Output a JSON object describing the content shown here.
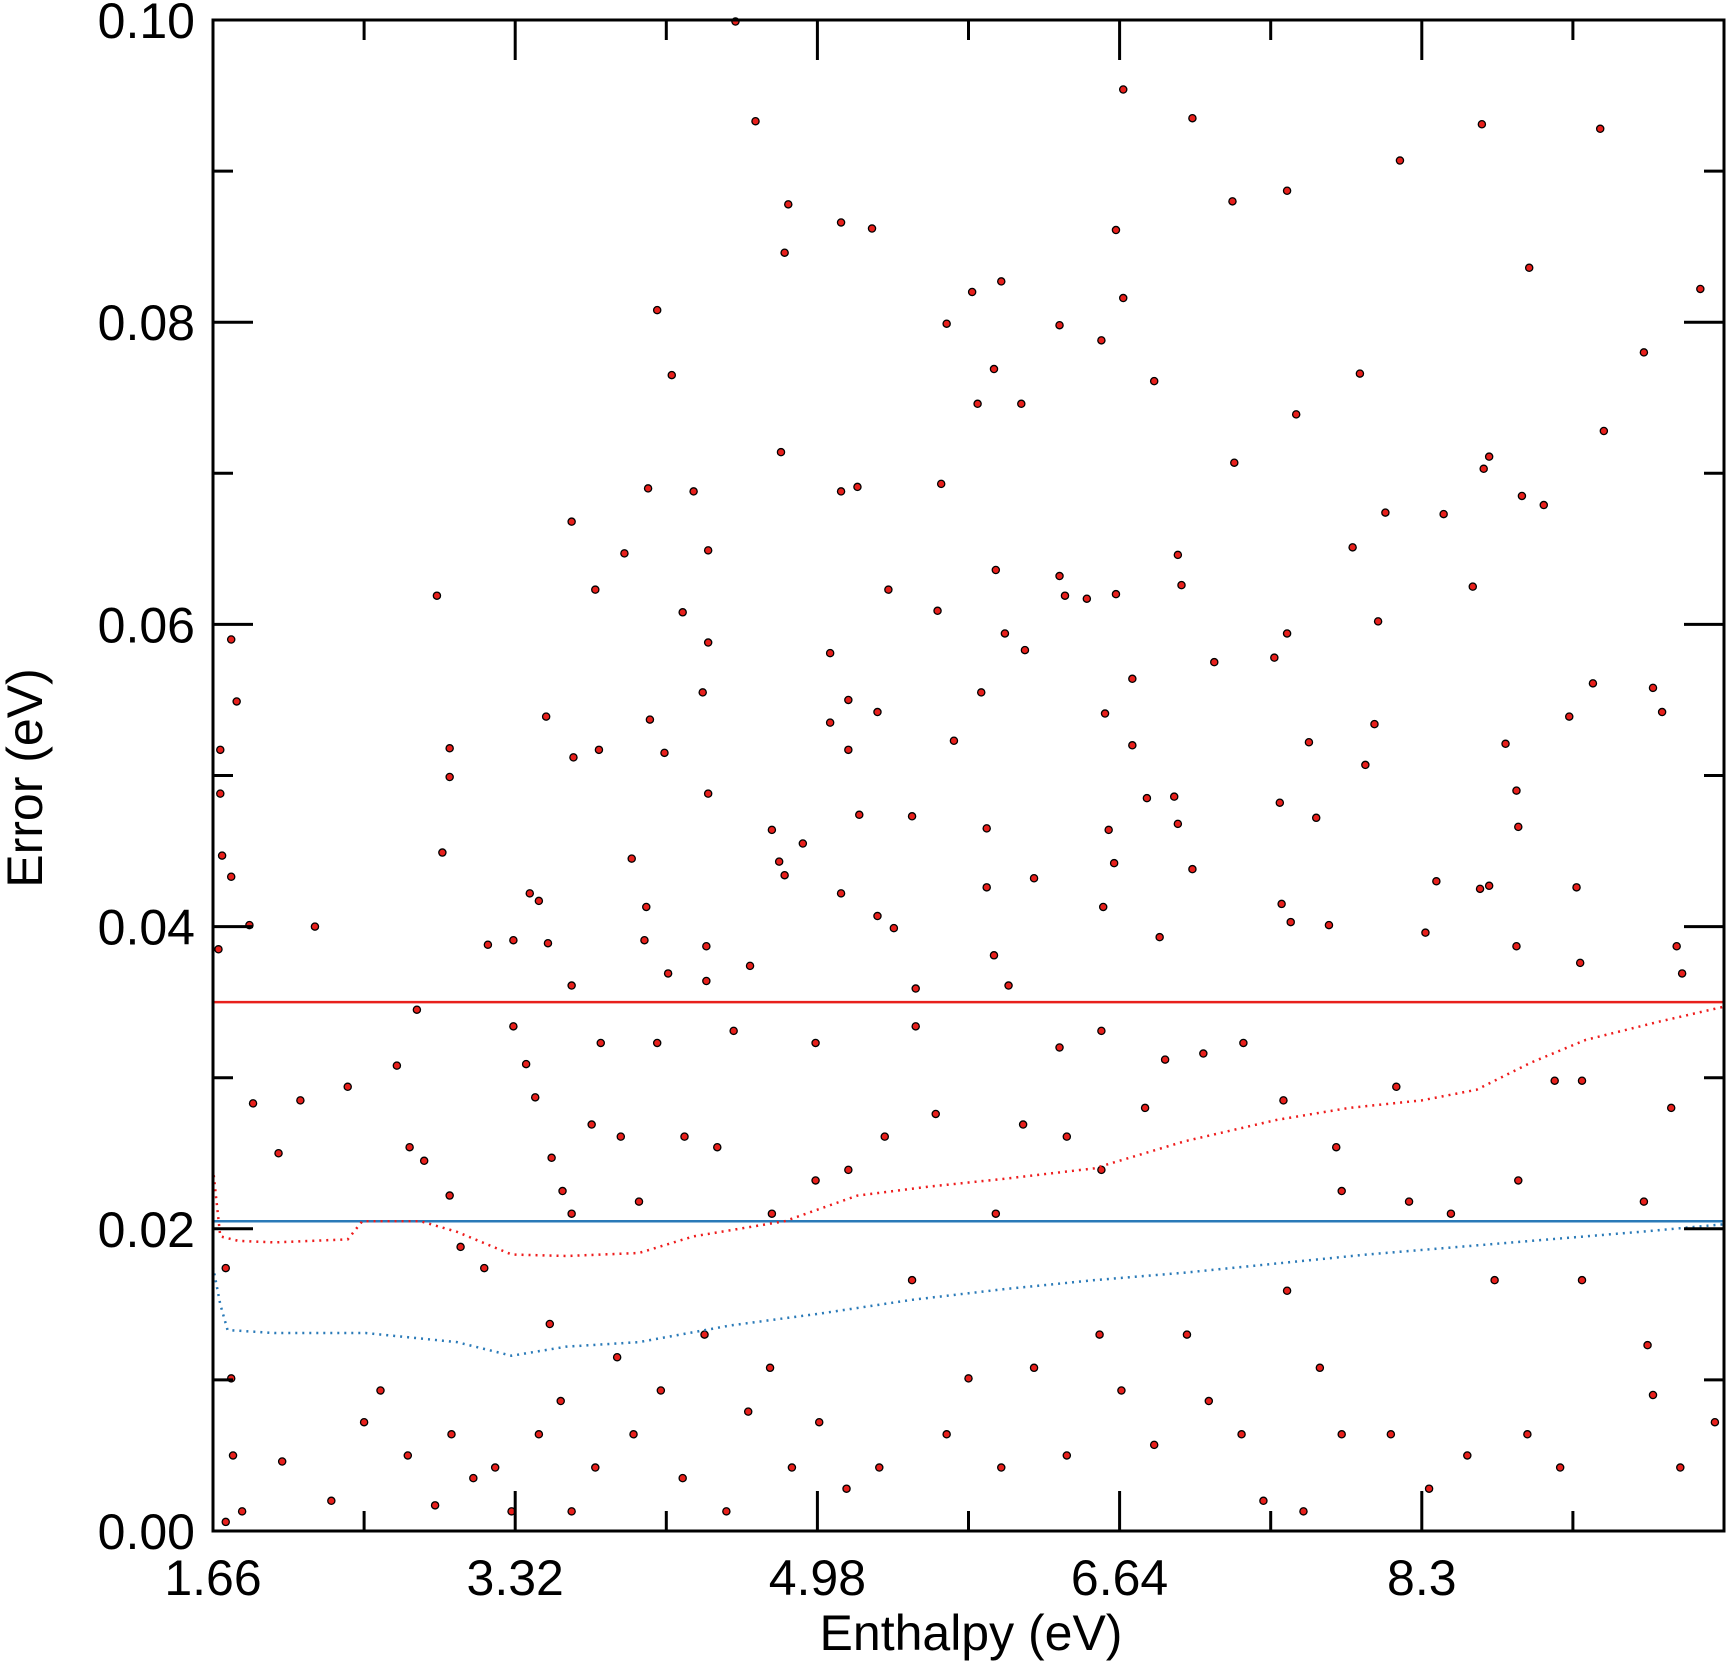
{
  "chart_data": {
    "type": "scatter",
    "xlabel": "Enthalpy (eV)",
    "ylabel": "Error (eV)",
    "xlim": [
      1.66,
      9.96
    ],
    "ylim": [
      0,
      0.1
    ],
    "xticks": [
      1.66,
      3.32,
      4.98,
      6.64,
      8.3
    ],
    "xminorticks": [
      2.49,
      4.15,
      5.81,
      7.47,
      9.13
    ],
    "yticks": [
      {
        "value": 0,
        "label": "0.00"
      },
      {
        "value": 0.02,
        "label": "0.02"
      },
      {
        "value": 0.04,
        "label": "0.04"
      },
      {
        "value": 0.06,
        "label": "0.06"
      },
      {
        "value": 0.08,
        "label": "0.08"
      },
      {
        "value": 0.1,
        "label": "0.10"
      }
    ],
    "yminorticks": [
      0.01,
      0.03,
      0.05,
      0.07,
      0.09
    ],
    "points": {
      "color": "#e8201c",
      "edgecolor": "#000000",
      "x": [
        4.53,
        4.64,
        4.82,
        4.8,
        5.11,
        5.28,
        4.1,
        4.18,
        6.66,
        7.04,
        7.26,
        7.56,
        8.18,
        8.63,
        9.28,
        8.89,
        9.83,
        9.52,
        5.99,
        5.83,
        5.69,
        6.31,
        6.54,
        6.62,
        6.66,
        5.95,
        6.1,
        5.86,
        6.83,
        7.96,
        7.61,
        7.27,
        8.67,
        9.3,
        4.78,
        5.11,
        5.2,
        5.66,
        3.63,
        4.05,
        4.3,
        4.38,
        3.92,
        3.76,
        2.89,
        4.24,
        4.38,
        4.35,
        5.05,
        5.37,
        5.64,
        5.96,
        6.31,
        6.34,
        6.46,
        6.62,
        6.01,
        6.12,
        6.96,
        6.98,
        7.16,
        7.56,
        7.49,
        7.92,
        8.1,
        8.06,
        8.42,
        8.58,
        8.64,
        8.85,
        8.97,
        9.24,
        9.57,
        9.62,
        9.11,
        8.76,
        8.82,
        8.83,
        9.15,
        9.17,
        9.7,
        8.82,
        7.99,
        8.04,
        7.68,
        7.52,
        7.72,
        7.79,
        7.53,
        7.58,
        7.04,
        6.94,
        6.96,
        6.79,
        6.86,
        6.61,
        6.58,
        6.55,
        6.71,
        6.71,
        6.56,
        6.17,
        5.91,
        5.91,
        5.95,
        6.03,
        5.73,
        5.88,
        5.5,
        5.31,
        5.15,
        5.05,
        5.15,
        5.21,
        5.11,
        5.31,
        5.4,
        4.9,
        4.73,
        4.8,
        4.77,
        4.38,
        4.14,
        4.06,
        3.78,
        3.64,
        3.49,
        2.96,
        2.96,
        2.92,
        3.4,
        3.45,
        3.17,
        3.31,
        3.5,
        3.63,
        3.96,
        4.04,
        4.03,
        4.16,
        4.37,
        4.37,
        4.61,
        5.52,
        8.32,
        8.38,
        8.62,
        8.67,
        9.73,
        2.22,
        1.86,
        1.76,
        1.79,
        1.7,
        1.7,
        1.71,
        1.76,
        1.69,
        1.88,
        2.02,
        2.14,
        2.4,
        2.67,
        2.78,
        2.74,
        2.82,
        2.96,
        3.02,
        3.15,
        3.31,
        3.38,
        3.43,
        3.52,
        3.58,
        3.63,
        3.74,
        3.79,
        3.9,
        4.0,
        4.1,
        4.25,
        4.43,
        4.52,
        4.73,
        4.97,
        4.97,
        5.15,
        5.35,
        5.52,
        5.63,
        5.96,
        6.11,
        6.31,
        6.35,
        6.54,
        6.54,
        6.78,
        6.89,
        7.1,
        7.32,
        7.54,
        7.83,
        7.86,
        8.16,
        8.23,
        8.46,
        8.83,
        9.03,
        9.18,
        9.52,
        9.67,
        1.73,
        1.76,
        1.77,
        1.82,
        1.73,
        2.04,
        2.31,
        2.49,
        2.58,
        2.73,
        2.88,
        2.97,
        3.09,
        3.21,
        3.3,
        3.45,
        3.51,
        3.57,
        3.63,
        3.76,
        3.88,
        3.97,
        4.12,
        4.24,
        4.36,
        4.48,
        4.6,
        4.72,
        4.84,
        4.99,
        5.14,
        5.32,
        5.5,
        5.69,
        5.81,
        5.99,
        6.17,
        6.35,
        6.53,
        6.65,
        6.83,
        7.01,
        7.13,
        7.31,
        7.43,
        7.56,
        7.65,
        7.74,
        7.86,
        8.13,
        8.34,
        8.55,
        8.7,
        8.88,
        9.06,
        9.18,
        9.54,
        9.57,
        9.72,
        9.91
      ],
      "y": [
        0.0999,
        0.0933,
        0.0878,
        0.0846,
        0.0866,
        0.0862,
        0.0808,
        0.0765,
        0.0954,
        0.0935,
        0.088,
        0.0887,
        0.0907,
        0.0931,
        0.0928,
        0.0836,
        0.0822,
        0.078,
        0.0827,
        0.082,
        0.0799,
        0.0798,
        0.0788,
        0.0861,
        0.0816,
        0.0769,
        0.0746,
        0.0746,
        0.0761,
        0.0766,
        0.0739,
        0.0707,
        0.0711,
        0.0728,
        0.0714,
        0.0688,
        0.0691,
        0.0693,
        0.0668,
        0.069,
        0.0688,
        0.0649,
        0.0647,
        0.0623,
        0.0619,
        0.0608,
        0.0588,
        0.0555,
        0.0581,
        0.0623,
        0.0609,
        0.0636,
        0.0632,
        0.0619,
        0.0617,
        0.062,
        0.0594,
        0.0583,
        0.0646,
        0.0626,
        0.0575,
        0.0594,
        0.0578,
        0.0651,
        0.0674,
        0.0602,
        0.0673,
        0.0625,
        0.0703,
        0.0685,
        0.0679,
        0.0561,
        0.0558,
        0.0542,
        0.0539,
        0.0521,
        0.049,
        0.0466,
        0.0426,
        0.0376,
        0.0387,
        0.0387,
        0.0507,
        0.0534,
        0.0522,
        0.0482,
        0.0472,
        0.0401,
        0.0415,
        0.0403,
        0.0438,
        0.0486,
        0.0468,
        0.0485,
        0.0393,
        0.0442,
        0.0464,
        0.0413,
        0.052,
        0.0564,
        0.0541,
        0.0432,
        0.0465,
        0.0426,
        0.0381,
        0.0361,
        0.0523,
        0.0555,
        0.0473,
        0.0542,
        0.055,
        0.0535,
        0.0517,
        0.0474,
        0.0422,
        0.0407,
        0.0399,
        0.0455,
        0.0464,
        0.0434,
        0.0443,
        0.0488,
        0.0515,
        0.0537,
        0.0517,
        0.0512,
        0.0539,
        0.0518,
        0.0499,
        0.0449,
        0.0422,
        0.0417,
        0.0388,
        0.0391,
        0.0389,
        0.0361,
        0.0445,
        0.0413,
        0.0391,
        0.0369,
        0.0387,
        0.0364,
        0.0374,
        0.0359,
        0.0396,
        0.043,
        0.0425,
        0.0427,
        0.0369,
        0.04,
        0.0401,
        0.059,
        0.0549,
        0.0517,
        0.0488,
        0.0447,
        0.0433,
        0.0385,
        0.0283,
        0.025,
        0.0285,
        0.0294,
        0.0308,
        0.0345,
        0.0254,
        0.0245,
        0.0222,
        0.0188,
        0.0174,
        0.0334,
        0.0309,
        0.0287,
        0.0247,
        0.0225,
        0.021,
        0.0269,
        0.0323,
        0.0261,
        0.0218,
        0.0323,
        0.0261,
        0.0254,
        0.0331,
        0.021,
        0.0323,
        0.0232,
        0.0239,
        0.0261,
        0.0334,
        0.0276,
        0.021,
        0.0269,
        0.032,
        0.0261,
        0.0331,
        0.0239,
        0.028,
        0.0312,
        0.0316,
        0.0323,
        0.0285,
        0.0254,
        0.0225,
        0.0294,
        0.0218,
        0.021,
        0.0232,
        0.0298,
        0.0298,
        0.0218,
        0.028,
        0.0174,
        0.0101,
        0.005,
        0.0013,
        0.0006,
        0.0046,
        0.002,
        0.0072,
        0.0093,
        0.005,
        0.0017,
        0.0064,
        0.0035,
        0.0042,
        0.0013,
        0.0064,
        0.0137,
        0.0086,
        0.0013,
        0.0042,
        0.0115,
        0.0064,
        0.0093,
        0.0035,
        0.013,
        0.0013,
        0.0079,
        0.0108,
        0.0042,
        0.0072,
        0.0028,
        0.0042,
        0.0166,
        0.0064,
        0.0101,
        0.0042,
        0.0108,
        0.005,
        0.013,
        0.0093,
        0.0057,
        0.013,
        0.0086,
        0.0064,
        0.002,
        0.0159,
        0.0013,
        0.0108,
        0.0064,
        0.0064,
        0.0028,
        0.005,
        0.0166,
        0.0064,
        0.0042,
        0.0166,
        0.0123,
        0.009,
        0.0042,
        0.0072
      ]
    },
    "curves": [
      {
        "color": "#ee1c1c",
        "x": [
          1.66,
          1.7,
          1.8,
          2.0,
          2.4,
          2.48,
          2.8,
          3.0,
          3.3,
          3.6,
          4.0,
          4.3,
          4.8,
          5.2,
          5.6,
          6.0,
          6.5,
          7.0,
          7.5,
          7.9,
          8.3,
          8.6,
          8.9,
          9.2,
          9.6,
          9.96
        ],
        "y": [
          0.024,
          0.0195,
          0.0192,
          0.0191,
          0.0193,
          0.0205,
          0.0205,
          0.0198,
          0.0183,
          0.0182,
          0.0184,
          0.0195,
          0.0205,
          0.0222,
          0.0228,
          0.0233,
          0.024,
          0.0258,
          0.0272,
          0.028,
          0.0285,
          0.0292,
          0.031,
          0.0325,
          0.0337,
          0.0347
        ]
      },
      {
        "color": "#2a7ab8",
        "x": [
          1.66,
          1.7,
          1.74,
          2.0,
          2.5,
          3.0,
          3.3,
          3.6,
          4.0,
          4.5,
          5.0,
          5.5,
          6.0,
          6.5,
          7.0,
          7.5,
          8.0,
          8.5,
          9.0,
          9.5,
          9.96
        ],
        "y": [
          0.0175,
          0.015,
          0.0133,
          0.0131,
          0.0131,
          0.0125,
          0.0116,
          0.0122,
          0.0125,
          0.0136,
          0.0144,
          0.0153,
          0.016,
          0.0166,
          0.0171,
          0.0177,
          0.0183,
          0.0188,
          0.0193,
          0.0198,
          0.0203
        ]
      }
    ],
    "hlines": [
      {
        "value": 0.035,
        "color": "#e8201c"
      },
      {
        "value": 0.0205,
        "color": "#2a7ab8"
      }
    ]
  }
}
